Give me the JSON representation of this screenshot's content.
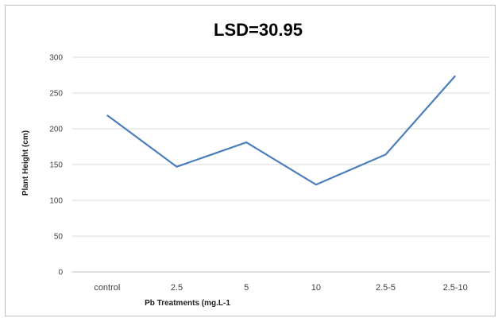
{
  "chart_data": {
    "type": "line",
    "title": "LSD=30.95",
    "xlabel": "Pb Treatments (mg.L-1",
    "ylabel": "Plant Height (cm)",
    "categories": [
      "control",
      "2.5",
      "5",
      "10",
      "2.5-5",
      "2.5-10"
    ],
    "series": [
      {
        "values": [
          219,
          147,
          181,
          122,
          164,
          274
        ]
      }
    ],
    "ylim": [
      0,
      300
    ],
    "yticks": [
      0,
      50,
      100,
      150,
      200,
      250,
      300
    ],
    "grid": true,
    "legend": "none",
    "colors": {
      "line": "#4a7ebb",
      "grid": "#d9d9d9",
      "axis": "#bfbfbf"
    }
  }
}
